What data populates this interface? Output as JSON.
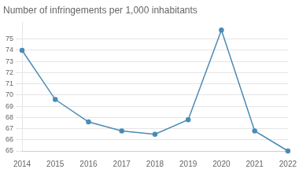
{
  "chart_data": {
    "type": "line",
    "title": "Number of infringements per 1,000 inhabitants",
    "x": [
      2014,
      2015,
      2016,
      2017,
      2018,
      2019,
      2020,
      2021,
      2022
    ],
    "values": [
      74.0,
      69.6,
      67.6,
      66.8,
      66.5,
      67.8,
      75.8,
      66.8,
      65.0
    ],
    "color": "#4a8bb5",
    "marker": "circle",
    "xlim": [
      2014,
      2022
    ],
    "xticks": [
      2014,
      2015,
      2016,
      2017,
      2018,
      2019,
      2020,
      2021,
      2022
    ],
    "ylim": [
      65,
      76.5
    ],
    "yticks": [
      65,
      66,
      67,
      68,
      69,
      70,
      71,
      72,
      73,
      74,
      75
    ],
    "grid": true
  }
}
